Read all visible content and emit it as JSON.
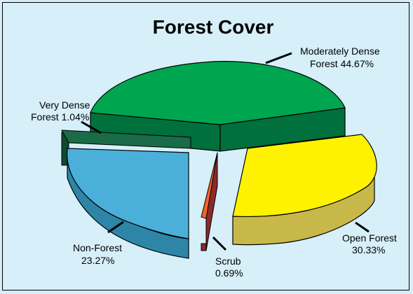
{
  "chart_data": {
    "type": "pie",
    "title": "Forest Cover",
    "slices": [
      {
        "label_line1": "Moderately Dense",
        "label_line2": "Forest  44.67%",
        "value": 44.67,
        "color": "#00a550"
      },
      {
        "label_line1": "Open Forest",
        "label_line2": "30.33%",
        "value": 30.33,
        "color": "#fff200"
      },
      {
        "label_line1": "Scrub",
        "label_line2": "0.69%",
        "value": 0.69,
        "color": "#f26522"
      },
      {
        "label_line1": "Non-Forest",
        "label_line2": "23.27%",
        "value": 23.27,
        "color": "#4ab0d9"
      },
      {
        "label_line1": "Very Dense",
        "label_line2": "Forest 1.04%",
        "value": 1.04,
        "color": "#1a6b47"
      }
    ],
    "style": "3d-exploded"
  },
  "colors": {
    "background": "#d6eff9",
    "moderately_dense_side": "#00703c",
    "open_forest_side": "#c8b84a",
    "scrub_side": "#8b2a2a",
    "non_forest_side": "#2d86a8",
    "very_dense_side": "#0e4a30"
  }
}
